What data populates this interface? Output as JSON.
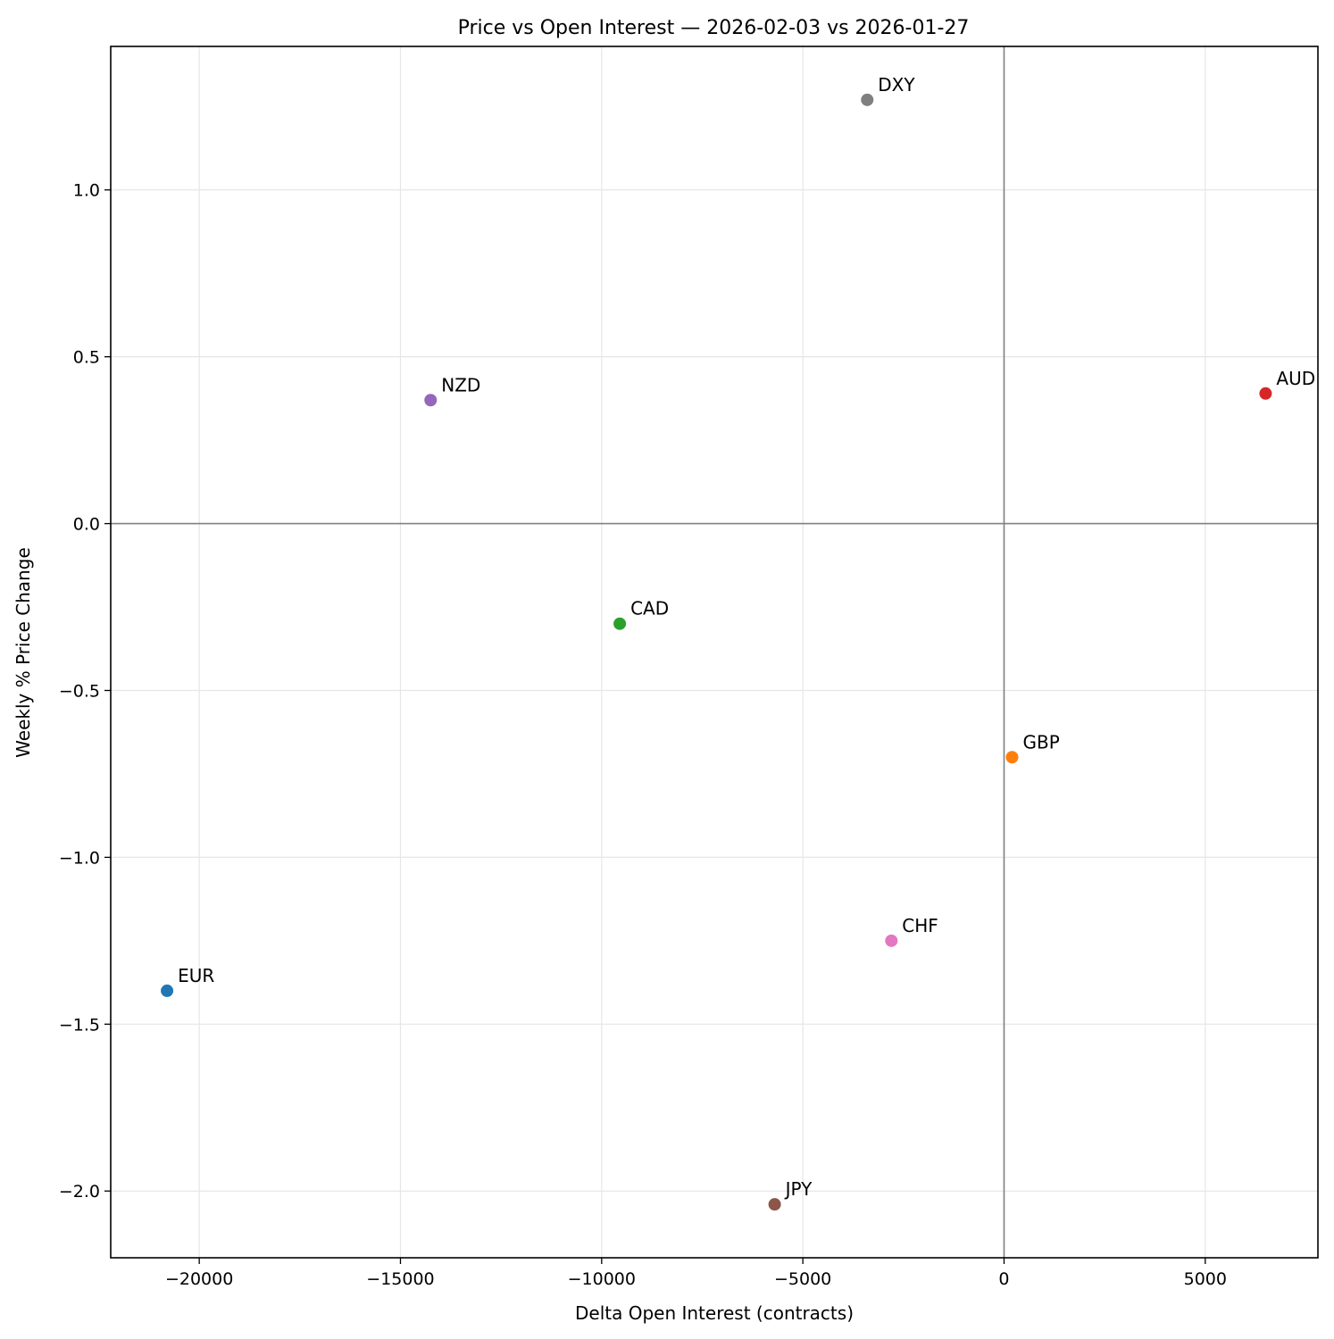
{
  "chart_data": {
    "type": "scatter",
    "title": "Price vs Open Interest — 2026-02-03 vs 2026-01-27",
    "xlabel": "Delta Open Interest (contracts)",
    "ylabel": "Weekly % Price Change",
    "xlim": [
      -22200,
      7800
    ],
    "ylim": [
      -2.2,
      1.43
    ],
    "xticks": [
      -20000,
      -15000,
      -10000,
      -5000,
      0,
      5000
    ],
    "xtick_labels": [
      "−20000",
      "−15000",
      "−10000",
      "−5000",
      "0",
      "5000"
    ],
    "yticks": [
      -2.0,
      -1.5,
      -1.0,
      -0.5,
      0.0,
      0.5,
      1.0
    ],
    "ytick_labels": [
      "−2.0",
      "−1.5",
      "−1.0",
      "−0.5",
      "0.0",
      "0.5",
      "1.0"
    ],
    "grid": true,
    "reference_lines": {
      "x": 0,
      "y": 0
    },
    "points": [
      {
        "label": "EUR",
        "x": -20800,
        "y": -1.4,
        "color": "#1f77b4"
      },
      {
        "label": "GBP",
        "x": 200,
        "y": -0.7,
        "color": "#ff7f0e"
      },
      {
        "label": "CAD",
        "x": -9550,
        "y": -0.3,
        "color": "#2ca02c"
      },
      {
        "label": "AUD",
        "x": 6500,
        "y": 0.39,
        "color": "#d62728"
      },
      {
        "label": "NZD",
        "x": -14250,
        "y": 0.37,
        "color": "#9467bd"
      },
      {
        "label": "JPY",
        "x": -5700,
        "y": -2.04,
        "color": "#8c564b"
      },
      {
        "label": "CHF",
        "x": -2800,
        "y": -1.25,
        "color": "#e377c2"
      },
      {
        "label": "DXY",
        "x": -3400,
        "y": 1.27,
        "color": "#7f7f7f"
      }
    ]
  }
}
